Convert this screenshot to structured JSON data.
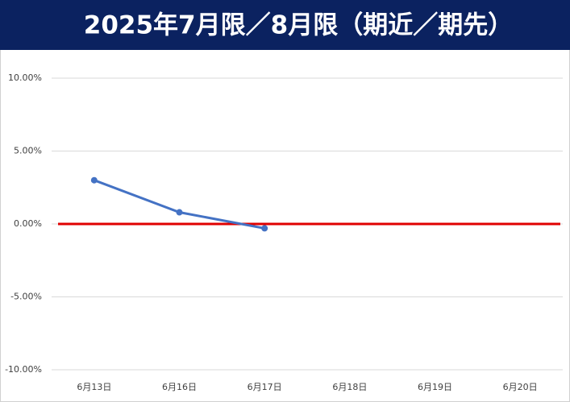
{
  "chart_data": {
    "type": "line",
    "title": "2025年7月限／8月限（期近／期先）",
    "categories": [
      "6月13日",
      "6月16日",
      "6月17日",
      "6月18日",
      "6月19日",
      "6月20日"
    ],
    "series": [
      {
        "color": "#4472c4",
        "values": [
          3.0,
          0.8,
          -0.3,
          null,
          null,
          null
        ]
      }
    ],
    "reference_line": {
      "value": 0,
      "color": "#e00000"
    },
    "ylim": [
      -10,
      10
    ],
    "yticks": [
      {
        "value": -10,
        "label": "-10.00%"
      },
      {
        "value": -5,
        "label": "-5.00%"
      },
      {
        "value": 0,
        "label": "0.00%"
      },
      {
        "value": 5,
        "label": "5.00%"
      },
      {
        "value": 10,
        "label": "10.00%"
      }
    ],
    "grid": true
  }
}
